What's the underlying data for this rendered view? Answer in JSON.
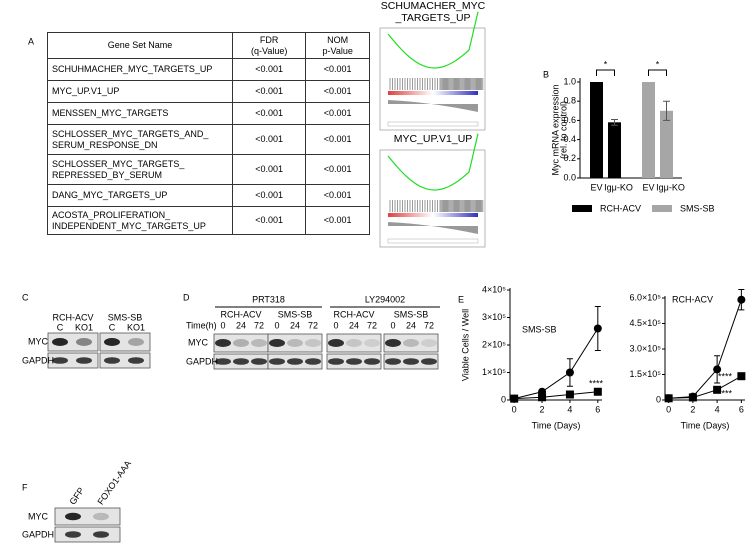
{
  "panel_labels": [
    "A",
    "B",
    "C",
    "D",
    "E",
    "F"
  ],
  "table": {
    "header": [
      "Gene Set Name",
      "FDR\n(q-Value)",
      "NOM\np-Value"
    ],
    "rows": [
      [
        "SCHUHMACHER_MYC_TARGETS_UP",
        "<0.001",
        "<0.001"
      ],
      [
        "MYC_UP.V1_UP",
        "<0.001",
        "<0.001"
      ],
      [
        "MENSSEN_MYC_TARGETS",
        "<0.001",
        "<0.001"
      ],
      [
        "SCHLOSSER_MYC_TARGETS_AND_\nSERUM_RESPONSE_DN",
        "<0.001",
        "<0.001"
      ],
      [
        "SCHLOSSER_MYC_TARGETS_\nREPRESSED_BY_SERUM",
        "<0.001",
        "<0.001"
      ],
      [
        "DANG_MYC_TARGETS_UP",
        "<0.001",
        "<0.001"
      ],
      [
        "ACOSTA_PROLIFERATION_\nINDEPENDENT_MYC_TARGETS_UP",
        "<0.001",
        "<0.001"
      ]
    ]
  },
  "gsea": {
    "titles": [
      "SCHUMACHER_MYC\n_TARGETS_UP",
      "MYC_UP.V1_UP"
    ]
  },
  "blots": {
    "C": {
      "groups": [
        "RCH-ACV",
        "SMS-SB"
      ],
      "lanes": [
        "C",
        "KO1"
      ],
      "rows": [
        "MYC",
        "GAPDH"
      ]
    },
    "D": {
      "treatments": [
        "PRT318",
        "LY294002"
      ],
      "groups": [
        "RCH-ACV",
        "SMS-SB"
      ],
      "time_label": "Time(h)",
      "lanes": [
        "0",
        "24",
        "72"
      ],
      "rows": [
        "MYC",
        "GAPDH"
      ]
    },
    "F": {
      "lanes": [
        "GFP",
        "FOXO1-AAA"
      ],
      "rows": [
        "MYC",
        "GAPDH"
      ]
    }
  },
  "chart_data": [
    {
      "type": "bar",
      "y_label": [
        "Myc mRNA expression",
        "(rel. to control)"
      ],
      "categories": [
        "EV",
        "Igμ-KO"
      ],
      "series": [
        {
          "name": "RCH-ACV",
          "color": "#000000",
          "values": [
            1.0,
            0.58
          ],
          "errors": [
            0,
            0.03
          ]
        },
        {
          "name": "SMS-SB",
          "color": "#a6a6a6",
          "values": [
            1.0,
            0.7
          ],
          "errors": [
            0,
            0.1
          ]
        }
      ],
      "significance": [
        "*",
        "*"
      ],
      "ylim": [
        0,
        1.0
      ],
      "yticks": [
        {
          "value": 0,
          "label": "0.0"
        },
        0.2,
        0.4,
        0.6,
        0.8,
        {
          "value": 1.0,
          "label": "1.0"
        }
      ]
    },
    {
      "type": "line",
      "title": "SMS-SB",
      "x_label": "Time (Days)",
      "y_label": "Viable Cells / Well",
      "x": [
        0,
        2,
        4,
        6
      ],
      "xlim": [
        -0.3,
        6.3
      ],
      "xticks": [
        0,
        2,
        4,
        6
      ],
      "ylim": [
        0,
        400000
      ],
      "yticks": [
        0,
        {
          "value": 100000,
          "label": "1×10⁵"
        },
        {
          "value": 200000,
          "label": "2×10⁵"
        },
        {
          "value": 300000,
          "label": "3×10⁵"
        },
        {
          "value": 400000,
          "label": "4×10⁵"
        }
      ],
      "series": [
        {
          "marker": "circle",
          "color": "#000000",
          "values": [
            5000,
            30000,
            100000,
            260000
          ],
          "errors": [
            0,
            5000,
            50000,
            80000
          ]
        },
        {
          "marker": "square",
          "color": "#000000",
          "values": [
            5000,
            10000,
            20000,
            30000
          ],
          "errors": [
            0,
            0,
            3000,
            3000
          ]
        }
      ],
      "annotations": [
        "****"
      ]
    },
    {
      "type": "line",
      "title": "RCH-ACV",
      "x_label": "Time (Days)",
      "x": [
        0,
        2,
        4,
        6
      ],
      "xlim": [
        -0.3,
        6.3
      ],
      "xticks": [
        0,
        2,
        4,
        6
      ],
      "ylim": [
        0,
        600000
      ],
      "yticks": [
        0,
        {
          "value": 150000,
          "label": "1.5×10⁵"
        },
        {
          "value": 300000,
          "label": "3.0×10⁵"
        },
        {
          "value": 450000,
          "label": "4.5×10⁵"
        },
        {
          "value": 600000,
          "label": "6.0×10⁵"
        }
      ],
      "series": [
        {
          "marker": "circle",
          "color": "#000000",
          "values": [
            10000,
            20000,
            180000,
            590000
          ],
          "errors": [
            0,
            5000,
            80000,
            60000
          ]
        },
        {
          "marker": "square",
          "color": "#000000",
          "values": [
            10000,
            15000,
            60000,
            140000
          ],
          "errors": [
            0,
            0,
            10000,
            10000
          ]
        }
      ],
      "annotations": [
        "****",
        "****"
      ]
    }
  ]
}
